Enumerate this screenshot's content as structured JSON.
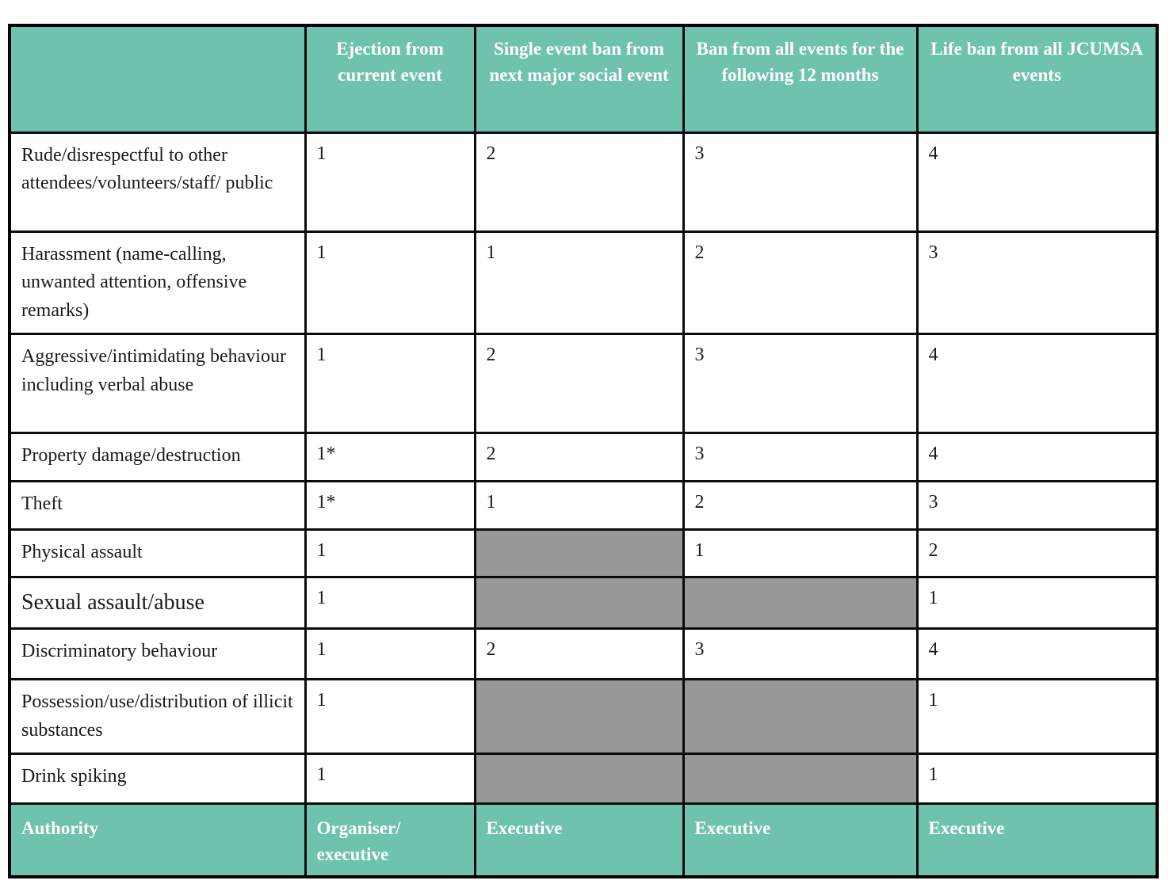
{
  "table": {
    "columns": [
      "",
      "Ejection from current event",
      "Single event ban from next major social event",
      "Ban from all events for the following 12 months",
      "Life ban from all JCUMSA events"
    ],
    "rows": [
      {
        "label": "Rude/disrespectful to other attendees/volunteers/staff/ public",
        "values": [
          "1",
          "2",
          "3",
          "4"
        ]
      },
      {
        "label": "Harassment (name-calling, unwanted attention, offensive remarks)",
        "values": [
          "1",
          "1",
          "2",
          "3"
        ]
      },
      {
        "label": "Aggressive/intimidating behaviour including verbal abuse",
        "values": [
          "1",
          "2",
          "3",
          "4"
        ]
      },
      {
        "label": "Property damage/destruction",
        "values": [
          "1*",
          "2",
          "3",
          "4"
        ]
      },
      {
        "label": "Theft",
        "values": [
          "1*",
          "1",
          "2",
          "3"
        ]
      },
      {
        "label": "Physical assault",
        "values": [
          "1",
          null,
          "1",
          "2"
        ]
      },
      {
        "label": "Sexual assault/abuse",
        "values": [
          "1",
          null,
          null,
          "1"
        ],
        "emphasis": true
      },
      {
        "label": "Discriminatory behaviour",
        "values": [
          "1",
          "2",
          "3",
          "4"
        ]
      },
      {
        "label": "Possession/use/distribution of illicit substances",
        "values": [
          "1",
          null,
          null,
          "1"
        ]
      },
      {
        "label": "Drink spiking",
        "values": [
          "1",
          null,
          null,
          "1"
        ]
      }
    ],
    "footer": {
      "label": "Authority",
      "values": [
        "Organiser/ executive",
        "Executive",
        "Executive",
        "Executive"
      ]
    },
    "colors": {
      "header_bg": "#6fc2ae",
      "blocked_bg": "#989898",
      "border": "#000000",
      "header_text": "#ffffff",
      "body_text": "#1b1b1b"
    }
  }
}
